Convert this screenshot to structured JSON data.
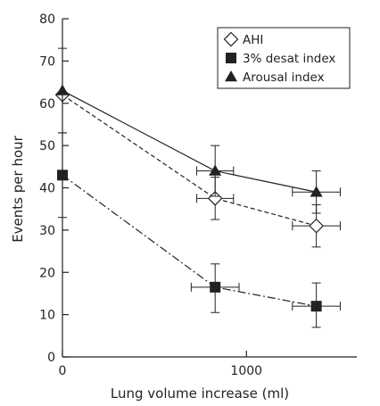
{
  "chart_data": {
    "type": "line",
    "xlabel": "Lung volume increase (ml)",
    "ylabel": "Events per hour",
    "xlim": [
      0,
      1600
    ],
    "ylim": [
      0,
      80
    ],
    "xticks": [
      0,
      1000
    ],
    "xtick_labels": [
      "0",
      "1000"
    ],
    "yticks": [
      0,
      10,
      20,
      30,
      40,
      50,
      60,
      70,
      80
    ],
    "ytick_labels": [
      "0",
      "10",
      "20",
      "30",
      "40",
      "50",
      "60",
      "70",
      "80"
    ],
    "grid": false,
    "legend_position": "top-right",
    "series": [
      {
        "name": "AHI",
        "marker": "open-diamond",
        "line": "dashed",
        "points": [
          {
            "x": 0,
            "y": 62,
            "ylow": 62,
            "yhigh": 62,
            "xlow": 0,
            "xhigh": 0
          },
          {
            "x": 830,
            "y": 37.5,
            "ylow": 32.5,
            "yhigh": 42.5,
            "xlow": 730,
            "xhigh": 930
          },
          {
            "x": 1380,
            "y": 31,
            "ylow": 26,
            "yhigh": 36,
            "xlow": 1250,
            "xhigh": 1510
          }
        ]
      },
      {
        "name": "3% desat index",
        "marker": "filled-square",
        "line": "dash-dot",
        "points": [
          {
            "x": 0,
            "y": 43,
            "ylow": 33,
            "yhigh": 53,
            "xlow": 0,
            "xhigh": 0
          },
          {
            "x": 830,
            "y": 16.5,
            "ylow": 10.5,
            "yhigh": 22,
            "xlow": 700,
            "xhigh": 960
          },
          {
            "x": 1380,
            "y": 12,
            "ylow": 7,
            "yhigh": 17.5,
            "xlow": 1250,
            "xhigh": 1510
          }
        ]
      },
      {
        "name": "Arousal index",
        "marker": "filled-triangle",
        "line": "solid",
        "points": [
          {
            "x": 0,
            "y": 63,
            "ylow": 53,
            "yhigh": 73,
            "xlow": 0,
            "xhigh": 0
          },
          {
            "x": 830,
            "y": 44,
            "ylow": 38,
            "yhigh": 50,
            "xlow": 730,
            "xhigh": 930
          },
          {
            "x": 1380,
            "y": 39,
            "ylow": 34,
            "yhigh": 44,
            "xlow": 1250,
            "xhigh": 1510
          }
        ]
      }
    ]
  }
}
